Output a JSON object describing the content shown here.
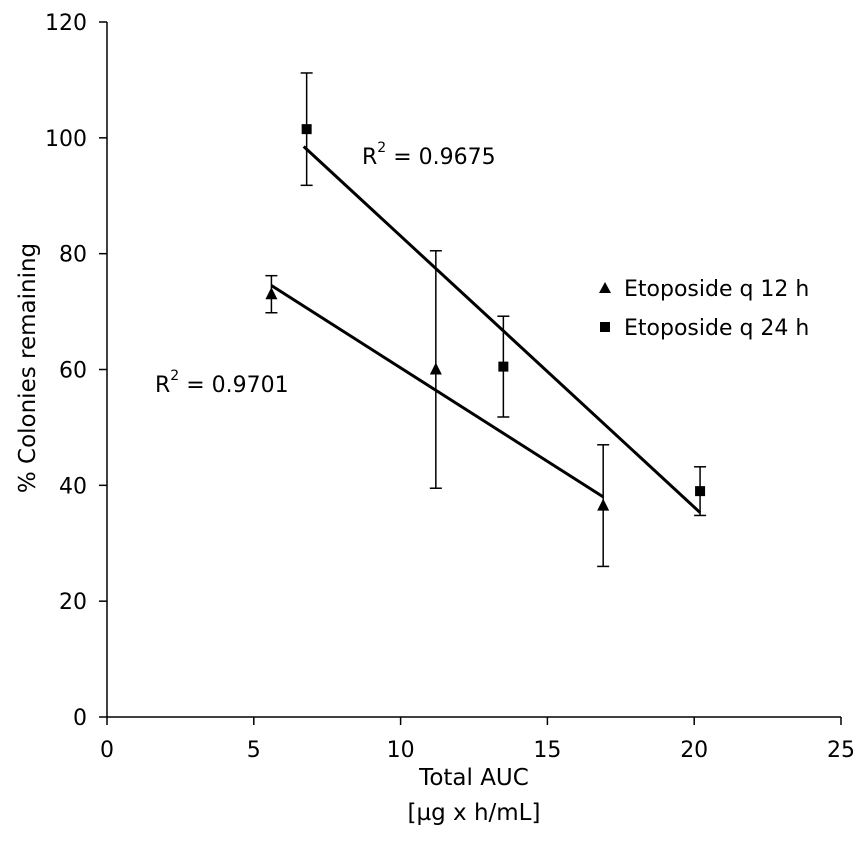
{
  "chart_data": {
    "type": "scatter",
    "xlabel_line1": "Total AUC",
    "xlabel_line2": "[µg x h/mL]",
    "ylabel": "% Colonies remaining",
    "xlim": [
      0,
      25
    ],
    "ylim": [
      0,
      120
    ],
    "x_ticks": [
      "0",
      "5",
      "10",
      "15",
      "20",
      "25"
    ],
    "y_ticks": [
      "0",
      "20",
      "40",
      "60",
      "80",
      "100",
      "120"
    ],
    "grid": false,
    "legend_position": "right",
    "series": [
      {
        "name": "Etoposide q 12 h",
        "marker": "triangle",
        "color": "#000000",
        "x": [
          5.6,
          11.2,
          16.9
        ],
        "y": [
          73,
          60,
          36.5
        ],
        "error": [
          3.2,
          20.5,
          10.5
        ],
        "trendline": {
          "x": [
            5.6,
            16.9
          ],
          "y": [
            74.5,
            38
          ],
          "r2_base": "R",
          "r2_exp": "2",
          "r2_value": " = 0.9701"
        }
      },
      {
        "name": "Etoposide q 24 h",
        "marker": "square",
        "color": "#000000",
        "x": [
          6.8,
          13.5,
          20.2
        ],
        "y": [
          101.5,
          60.5,
          39
        ],
        "error": [
          9.7,
          8.7,
          4.2
        ],
        "trendline": {
          "x": [
            6.7,
            20.2
          ],
          "y": [
            98.5,
            35.3
          ],
          "r2_base": "R",
          "r2_exp": "2",
          "r2_value": " = 0.9675"
        }
      }
    ]
  }
}
